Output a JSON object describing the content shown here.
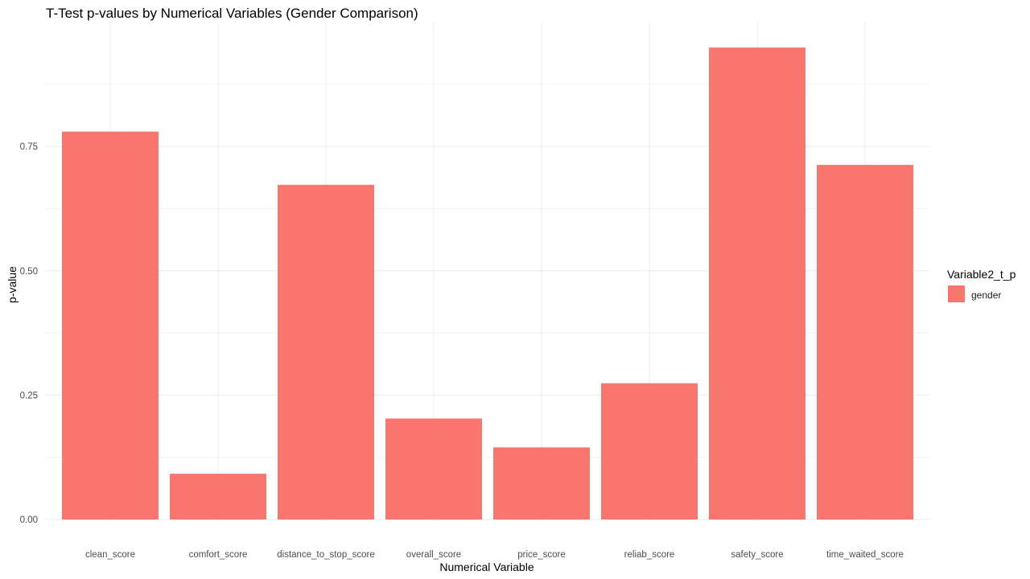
{
  "chart_data": {
    "type": "bar",
    "title": "T-Test p-values by Numerical Variables (Gender Comparison)",
    "xlabel": "Numerical Variable",
    "ylabel": "p-value",
    "categories": [
      "clean_score",
      "comfort_score",
      "distance_to_stop_score",
      "overall_score",
      "price_score",
      "reliab_score",
      "safety_score",
      "time_waited_score"
    ],
    "series": [
      {
        "name": "gender",
        "values": [
          0.78,
          0.092,
          0.673,
          0.203,
          0.145,
          0.274,
          0.949,
          0.713
        ]
      }
    ],
    "ylim": [
      0,
      0.95
    ],
    "yticks": [
      0.0,
      0.25,
      0.5,
      0.75
    ],
    "ytick_labels": [
      "0.00",
      "0.25",
      "0.50",
      "0.75"
    ],
    "grid": true,
    "legend": {
      "title": "Variable2_t_p",
      "position": "right"
    },
    "bar_color": "#F8766D"
  }
}
